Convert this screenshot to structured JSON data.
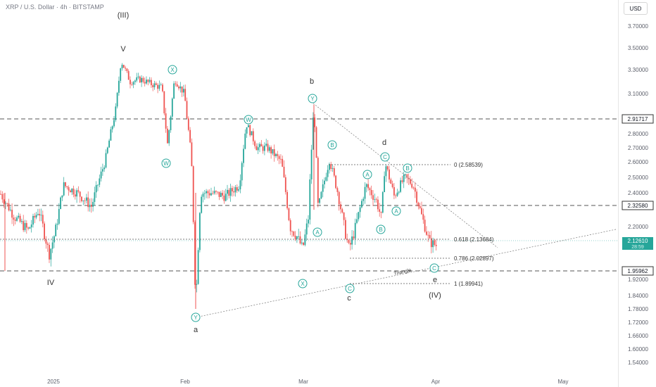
{
  "header": {
    "symbol_line": "XRP / U.S. Dollar · 4h · BITSTAMP"
  },
  "currency_button": "USD",
  "chart_data": {
    "type": "candlestick",
    "symbol": "XRP / U.S. Dollar",
    "interval": "4h",
    "exchange": "BITSTAMP",
    "currency": "USD",
    "y_ticks": [
      "3.70000",
      "3.50000",
      "3.30000",
      "3.10000",
      "2.80000",
      "2.70000",
      "2.60000",
      "2.50000",
      "2.40000",
      "2.20000",
      "2.00000",
      "1.92000",
      "1.84000",
      "1.78000",
      "1.72000",
      "1.66000",
      "1.60000",
      "1.54000"
    ],
    "x_ticks": [
      "2025",
      "Feb",
      "Mar",
      "Apr",
      "May"
    ],
    "horizontal_levels": [
      {
        "label": "2.91717",
        "price": 2.91717,
        "style": "dashed"
      },
      {
        "label": "2.32580",
        "price": 2.3258,
        "style": "dashed"
      },
      {
        "label": "1.95962",
        "price": 1.95962,
        "style": "dashed"
      }
    ],
    "current_price": {
      "label": "2.12610",
      "countdown": "28:59"
    },
    "fib_levels": [
      {
        "label": "0 (2.58539)",
        "price": 2.58539
      },
      {
        "label": "0.618 (2.13684)",
        "price": 2.13684
      },
      {
        "label": "0.786 (2.02897)",
        "price": 2.02897
      },
      {
        "label": "1 (1.89941)",
        "price": 1.89941
      }
    ],
    "wave_labels_plain": [
      "(III)",
      "V",
      "IV",
      "a",
      "b",
      "c",
      "d",
      "e",
      "(IV)"
    ],
    "wave_labels_circled": [
      "X",
      "W",
      "Y",
      "W",
      "X",
      "Y",
      "A",
      "B",
      "C",
      "A",
      "B",
      "C",
      "A",
      "B",
      "C"
    ],
    "annotations": [
      "Triangle"
    ],
    "colors": {
      "up": "#26a69a",
      "down": "#ef5350",
      "wave_label": "#26a69a",
      "level": "#555555"
    }
  }
}
